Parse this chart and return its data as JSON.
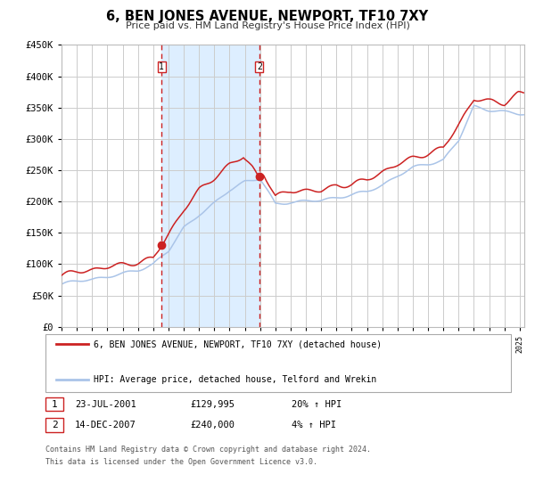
{
  "title": "6, BEN JONES AVENUE, NEWPORT, TF10 7XY",
  "subtitle": "Price paid vs. HM Land Registry's House Price Index (HPI)",
  "legend_line1": "6, BEN JONES AVENUE, NEWPORT, TF10 7XY (detached house)",
  "legend_line2": "HPI: Average price, detached house, Telford and Wrekin",
  "footnote1": "Contains HM Land Registry data © Crown copyright and database right 2024.",
  "footnote2": "This data is licensed under the Open Government Licence v3.0.",
  "sale1_label": "1",
  "sale1_date": "23-JUL-2001",
  "sale1_price": "£129,995",
  "sale1_hpi": "20% ↑ HPI",
  "sale2_label": "2",
  "sale2_date": "14-DEC-2007",
  "sale2_price": "£240,000",
  "sale2_hpi": "4% ↑ HPI",
  "sale1_price_val": 129995,
  "sale2_price_val": 240000,
  "ylim": [
    0,
    450000
  ],
  "xlim_start": 1995.0,
  "xlim_end": 2025.3,
  "bg_color": "#ffffff",
  "plot_bg_color": "#ffffff",
  "grid_color": "#cccccc",
  "hpi_line_color": "#aac4e8",
  "price_line_color": "#cc2222",
  "shade_color": "#ddeeff",
  "dashed_line_color": "#cc2222",
  "marker_color": "#cc2222",
  "sale1_x": 2001.556,
  "sale2_x": 2007.951,
  "hpi_anchors_x": [
    1995,
    1996,
    1997,
    1998,
    1999,
    2000,
    2001,
    2002,
    2003,
    2004,
    2005,
    2006,
    2007,
    2008,
    2009,
    2010,
    2011,
    2012,
    2013,
    2014,
    2015,
    2016,
    2017,
    2018,
    2019,
    2020,
    2021,
    2022,
    2023,
    2024,
    2025
  ],
  "hpi_anchors_y": [
    68000,
    72000,
    76000,
    80000,
    85000,
    91000,
    100000,
    120000,
    158000,
    180000,
    197000,
    218000,
    232000,
    236000,
    196000,
    200000,
    201000,
    201000,
    206000,
    211000,
    216000,
    227000,
    241000,
    253000,
    260000,
    267000,
    298000,
    352000,
    346000,
    342000,
    340000
  ],
  "price_anchors_x": [
    1995,
    1996,
    1997,
    1998,
    1999,
    2000,
    2001,
    2001.556,
    2002,
    2003,
    2004,
    2005,
    2006,
    2007,
    2007.0,
    2007.5,
    2007.951,
    2008.2,
    2009,
    2010,
    2011,
    2012,
    2013,
    2014,
    2015,
    2016,
    2017,
    2018,
    2019,
    2020,
    2021,
    2022,
    2023,
    2024,
    2024.9,
    2025
  ],
  "price_anchors_y": [
    82000,
    87000,
    91000,
    96000,
    100000,
    103000,
    108000,
    129995,
    148000,
    188000,
    218000,
    238000,
    258000,
    272000,
    268000,
    255000,
    240000,
    248000,
    207000,
    217000,
    217000,
    217000,
    227000,
    227000,
    234000,
    247000,
    260000,
    270000,
    277000,
    284000,
    323000,
    365000,
    360000,
    357000,
    372000,
    372000
  ]
}
